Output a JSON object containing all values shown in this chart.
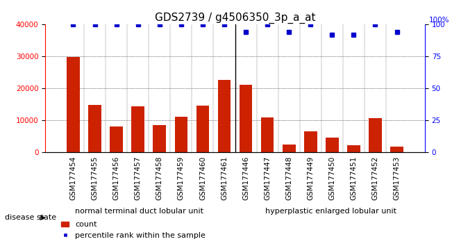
{
  "title": "GDS2739 / g4506350_3p_a_at",
  "categories": [
    "GSM177454",
    "GSM177455",
    "GSM177456",
    "GSM177457",
    "GSM177458",
    "GSM177459",
    "GSM177460",
    "GSM177461",
    "GSM177446",
    "GSM177447",
    "GSM177448",
    "GSM177449",
    "GSM177450",
    "GSM177451",
    "GSM177452",
    "GSM177453"
  ],
  "counts": [
    29800,
    14800,
    8200,
    14500,
    8500,
    11200,
    14700,
    22700,
    21200,
    10900,
    2500,
    6700,
    4600,
    2200,
    10700,
    1900
  ],
  "percentiles": [
    100,
    100,
    100,
    100,
    100,
    100,
    100,
    100,
    94,
    100,
    94,
    100,
    92,
    92,
    100,
    94
  ],
  "group1_label": "normal terminal duct lobular unit",
  "group2_label": "hyperplastic enlarged lobular unit",
  "group1_count": 8,
  "group2_count": 8,
  "ylim_left": [
    0,
    40000
  ],
  "ylim_right": [
    0,
    100
  ],
  "yticks_left": [
    0,
    10000,
    20000,
    30000,
    40000
  ],
  "yticks_right": [
    0,
    25,
    50,
    75,
    100
  ],
  "bar_color": "#cc2200",
  "dot_color": "#0000cc",
  "group1_bg": "#aaddaa",
  "group2_bg": "#aaddaa",
  "legend_count_label": "count",
  "legend_pct_label": "percentile rank within the sample",
  "title_fontsize": 11,
  "tick_fontsize": 7.5,
  "label_fontsize": 8
}
